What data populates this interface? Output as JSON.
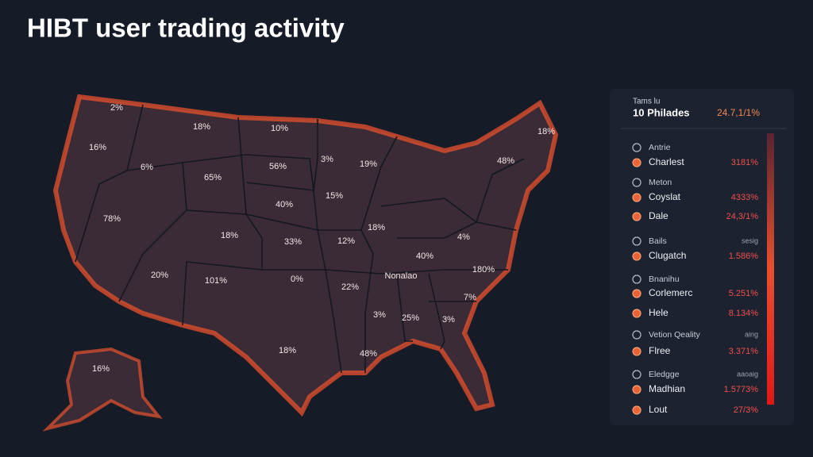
{
  "header": {
    "title": "HIBT user trading activity"
  },
  "map": {
    "labels": [
      "2%",
      "18%",
      "10%",
      "16%",
      "6%",
      "65%",
      "56%",
      "3%",
      "19%",
      "18%",
      "48%",
      "78%",
      "15%",
      "40%",
      "18%",
      "33%",
      "12%",
      "18%",
      "4%",
      "40%",
      "Nonalao",
      "180%",
      "20%",
      "101%",
      "0%",
      "22%",
      "7%",
      "3%",
      "25%",
      "3%",
      "18%",
      "48%",
      "16%"
    ]
  },
  "panel": {
    "caption": "Tams lu",
    "title": "10 Philades",
    "title_value": "24.7,1/1%",
    "items": [
      {
        "name": "Antrie"
      },
      {
        "name": "Charlest",
        "value": "3181%"
      },
      {
        "name": "Meton"
      },
      {
        "name": "Coyslat",
        "value": "4333%"
      },
      {
        "name": "Dale",
        "value": "24,3/1%"
      },
      {
        "name": "Bails",
        "value": "sesig"
      },
      {
        "name": "Clugatch",
        "value": "1.586%"
      },
      {
        "name": "Bnanihu"
      },
      {
        "name": "Corlemerc",
        "value": "5.251%"
      },
      {
        "name": "Hele",
        "value": "8.134%"
      },
      {
        "name": "Vetion Qeality",
        "value": "aing"
      },
      {
        "name": "Flree",
        "value": "3.371%"
      },
      {
        "name": "Eledgge",
        "value": "aaoaig"
      },
      {
        "name": "Madhian",
        "value": "1.5773%"
      },
      {
        "name": "Lout",
        "value": "27/3%"
      }
    ]
  }
}
